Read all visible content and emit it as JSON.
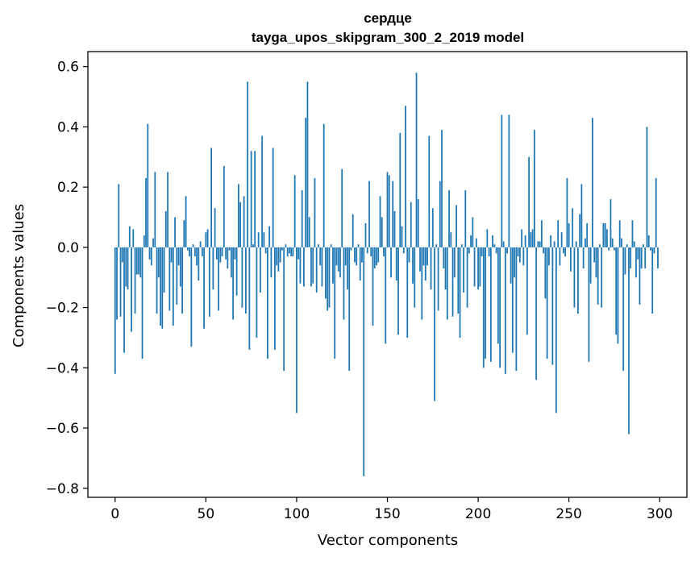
{
  "chart_data": {
    "type": "bar",
    "title": "сердце",
    "subtitle": "tayga_upos_skipgram_300_2_2019 model",
    "xlabel": "Vector components",
    "ylabel": "Components values",
    "xlim": [
      -15,
      315
    ],
    "ylim": [
      -0.83,
      0.65
    ],
    "xticks": [
      0,
      50,
      100,
      150,
      200,
      250,
      300
    ],
    "yticks": [
      -0.8,
      -0.6,
      -0.4,
      -0.2,
      0.0,
      0.2,
      0.4,
      0.6
    ],
    "ytick_labels": [
      "−0.8",
      "−0.6",
      "−0.4",
      "−0.2",
      "0.0",
      "0.2",
      "0.4",
      "0.6"
    ],
    "grid": false,
    "bar_color": "#1f77b4",
    "x": [
      0,
      1,
      2,
      3,
      4,
      5,
      6,
      7,
      8,
      9,
      10,
      11,
      12,
      13,
      14,
      15,
      16,
      17,
      18,
      19,
      20,
      21,
      22,
      23,
      24,
      25,
      26,
      27,
      28,
      29,
      30,
      31,
      32,
      33,
      34,
      35,
      36,
      37,
      38,
      39,
      40,
      41,
      42,
      43,
      44,
      45,
      46,
      47,
      48,
      49,
      50,
      51,
      52,
      53,
      54,
      55,
      56,
      57,
      58,
      59,
      60,
      61,
      62,
      63,
      64,
      65,
      66,
      67,
      68,
      69,
      70,
      71,
      72,
      73,
      74,
      75,
      76,
      77,
      78,
      79,
      80,
      81,
      82,
      83,
      84,
      85,
      86,
      87,
      88,
      89,
      90,
      91,
      92,
      93,
      94,
      95,
      96,
      97,
      98,
      99,
      100,
      101,
      102,
      103,
      104,
      105,
      106,
      107,
      108,
      109,
      110,
      111,
      112,
      113,
      114,
      115,
      116,
      117,
      118,
      119,
      120,
      121,
      122,
      123,
      124,
      125,
      126,
      127,
      128,
      129,
      130,
      131,
      132,
      133,
      134,
      135,
      136,
      137,
      138,
      139,
      140,
      141,
      142,
      143,
      144,
      145,
      146,
      147,
      148,
      149,
      150,
      151,
      152,
      153,
      154,
      155,
      156,
      157,
      158,
      159,
      160,
      161,
      162,
      163,
      164,
      165,
      166,
      167,
      168,
      169,
      170,
      171,
      172,
      173,
      174,
      175,
      176,
      177,
      178,
      179,
      180,
      181,
      182,
      183,
      184,
      185,
      186,
      187,
      188,
      189,
      190,
      191,
      192,
      193,
      194,
      195,
      196,
      197,
      198,
      199,
      200,
      201,
      202,
      203,
      204,
      205,
      206,
      207,
      208,
      209,
      210,
      211,
      212,
      213,
      214,
      215,
      216,
      217,
      218,
      219,
      220,
      221,
      222,
      223,
      224,
      225,
      226,
      227,
      228,
      229,
      230,
      231,
      232,
      233,
      234,
      235,
      236,
      237,
      238,
      239,
      240,
      241,
      242,
      243,
      244,
      245,
      246,
      247,
      248,
      249,
      250,
      251,
      252,
      253,
      254,
      255,
      256,
      257,
      258,
      259,
      260,
      261,
      262,
      263,
      264,
      265,
      266,
      267,
      268,
      269,
      270,
      271,
      272,
      273,
      274,
      275,
      276,
      277,
      278,
      279,
      280,
      281,
      282,
      283,
      284,
      285,
      286,
      287,
      288,
      289,
      290,
      291,
      292,
      293,
      294,
      295,
      296,
      297,
      298,
      299
    ],
    "values": [
      -0.42,
      -0.24,
      0.21,
      -0.23,
      -0.05,
      -0.35,
      -0.13,
      -0.14,
      0.07,
      -0.28,
      0.06,
      -0.22,
      -0.09,
      -0.09,
      -0.1,
      -0.37,
      0.04,
      0.23,
      0.41,
      -0.04,
      -0.06,
      0.03,
      0.25,
      -0.22,
      -0.1,
      -0.26,
      -0.27,
      -0.15,
      0.12,
      0.25,
      -0.21,
      -0.05,
      -0.26,
      0.1,
      -0.19,
      -0.06,
      -0.13,
      -0.22,
      0.09,
      0.17,
      -0.01,
      -0.03,
      -0.33,
      0.01,
      -0.03,
      -0.06,
      -0.11,
      0.02,
      -0.03,
      -0.27,
      0.05,
      0.06,
      -0.23,
      0.33,
      -0.14,
      0.13,
      -0.04,
      -0.21,
      -0.05,
      -0.03,
      0.27,
      -0.04,
      -0.07,
      -0.01,
      -0.1,
      -0.24,
      -0.04,
      -0.16,
      0.21,
      0.15,
      -0.2,
      0.17,
      -0.22,
      0.55,
      -0.34,
      0.32,
      0.01,
      0.32,
      -0.3,
      0.05,
      -0.15,
      0.37,
      0.05,
      -0.02,
      -0.37,
      0.07,
      -0.1,
      0.33,
      -0.34,
      -0.06,
      -0.08,
      -0.05,
      -0.01,
      -0.41,
      0.01,
      -0.03,
      -0.02,
      -0.03,
      -0.03,
      0.24,
      -0.55,
      -0.04,
      -0.12,
      0.19,
      -0.13,
      0.43,
      0.55,
      0.1,
      -0.13,
      -0.12,
      0.23,
      -0.15,
      0.01,
      -0.06,
      -0.13,
      0.41,
      -0.17,
      -0.21,
      -0.2,
      0.01,
      -0.12,
      -0.37,
      -0.06,
      -0.08,
      -0.1,
      0.26,
      -0.24,
      -0.06,
      -0.14,
      -0.41,
      -0.01,
      0.11,
      -0.05,
      -0.06,
      0.01,
      -0.11,
      -0.05,
      -0.76,
      0.08,
      -0.02,
      0.22,
      -0.03,
      -0.26,
      -0.07,
      -0.06,
      -0.05,
      0.17,
      0.1,
      -0.03,
      -0.32,
      0.25,
      0.24,
      -0.1,
      0.22,
      0.12,
      -0.11,
      -0.29,
      0.38,
      0.07,
      -0.02,
      0.47,
      -0.3,
      -0.05,
      0.15,
      -0.12,
      -0.2,
      0.58,
      0.16,
      -0.08,
      -0.24,
      -0.06,
      -0.11,
      -0.06,
      0.37,
      -0.14,
      0.13,
      -0.51,
      0.01,
      -0.21,
      0.22,
      0.39,
      -0.07,
      -0.14,
      -0.24,
      0.19,
      0.05,
      -0.23,
      -0.1,
      0.14,
      -0.22,
      -0.3,
      0.01,
      -0.15,
      0.19,
      -0.2,
      -0.02,
      0.04,
      0.1,
      -0.13,
      0.03,
      -0.14,
      -0.13,
      -0.03,
      -0.4,
      -0.37,
      0.06,
      -0.03,
      -0.38,
      0.04,
      0.01,
      -0.02,
      -0.32,
      -0.4,
      0.44,
      0.02,
      -0.42,
      -0.02,
      0.44,
      -0.12,
      -0.35,
      -0.1,
      -0.41,
      -0.03,
      -0.05,
      0.06,
      -0.06,
      0.04,
      -0.29,
      0.3,
      0.05,
      0.06,
      0.39,
      -0.44,
      0.02,
      0.02,
      0.09,
      -0.02,
      -0.17,
      -0.37,
      -0.06,
      0.04,
      -0.39,
      0.02,
      -0.55,
      0.09,
      -0.06,
      0.05,
      -0.02,
      -0.03,
      0.23,
      0.08,
      -0.08,
      0.13,
      -0.2,
      0.02,
      -0.22,
      0.11,
      0.21,
      -0.07,
      0.03,
      0.08,
      -0.38,
      -0.12,
      0.43,
      -0.05,
      -0.1,
      -0.19,
      0.01,
      -0.2,
      0.08,
      0.08,
      0.06,
      -0.01,
      0.16,
      0.03,
      -0.01,
      -0.29,
      -0.32,
      0.09,
      0.03,
      -0.41,
      -0.09,
      0.01,
      -0.62,
      -0.07,
      0.09,
      0.02,
      -0.1,
      -0.04,
      -0.19,
      -0.07,
      0.01,
      -0.07,
      0.4,
      0.04,
      -0.01,
      -0.22,
      -0.02,
      0.23,
      -0.07
    ]
  }
}
